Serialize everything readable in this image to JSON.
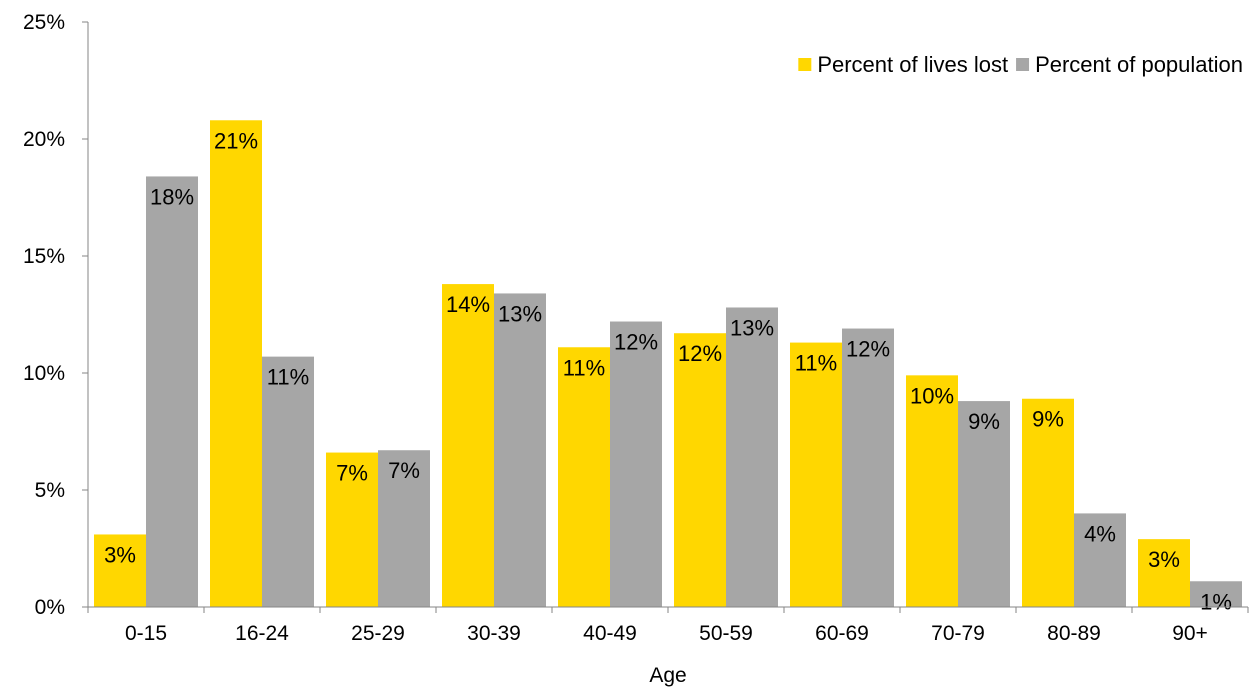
{
  "chart_data": {
    "type": "bar",
    "title": "",
    "xlabel": "Age",
    "ylabel": "",
    "ylim": [
      0,
      25
    ],
    "y_tick_labels": [
      "0%",
      "5%",
      "10%",
      "15%",
      "20%",
      "25%"
    ],
    "y_tick_values": [
      0,
      5,
      10,
      15,
      20,
      25
    ],
    "grid": false,
    "legend_position": "top-right",
    "categories": [
      "0-15",
      "16-24",
      "25-29",
      "30-39",
      "40-49",
      "50-59",
      "60-69",
      "70-79",
      "80-89",
      "90+"
    ],
    "series": [
      {
        "name": "Percent of lives lost",
        "color": "#FFD700",
        "values": [
          3.1,
          20.8,
          6.6,
          13.8,
          11.1,
          11.7,
          11.3,
          9.9,
          8.9,
          2.9
        ],
        "data_labels": [
          "3%",
          "21%",
          "7%",
          "14%",
          "11%",
          "12%",
          "11%",
          "10%",
          "9%",
          "3%"
        ]
      },
      {
        "name": "Percent of population",
        "color": "#A6A6A6",
        "values": [
          18.4,
          10.7,
          6.7,
          13.4,
          12.2,
          12.8,
          11.9,
          8.8,
          4.0,
          1.1
        ],
        "data_labels": [
          "18%",
          "11%",
          "7%",
          "13%",
          "12%",
          "13%",
          "12%",
          "9%",
          "4%",
          "1%"
        ]
      }
    ]
  }
}
